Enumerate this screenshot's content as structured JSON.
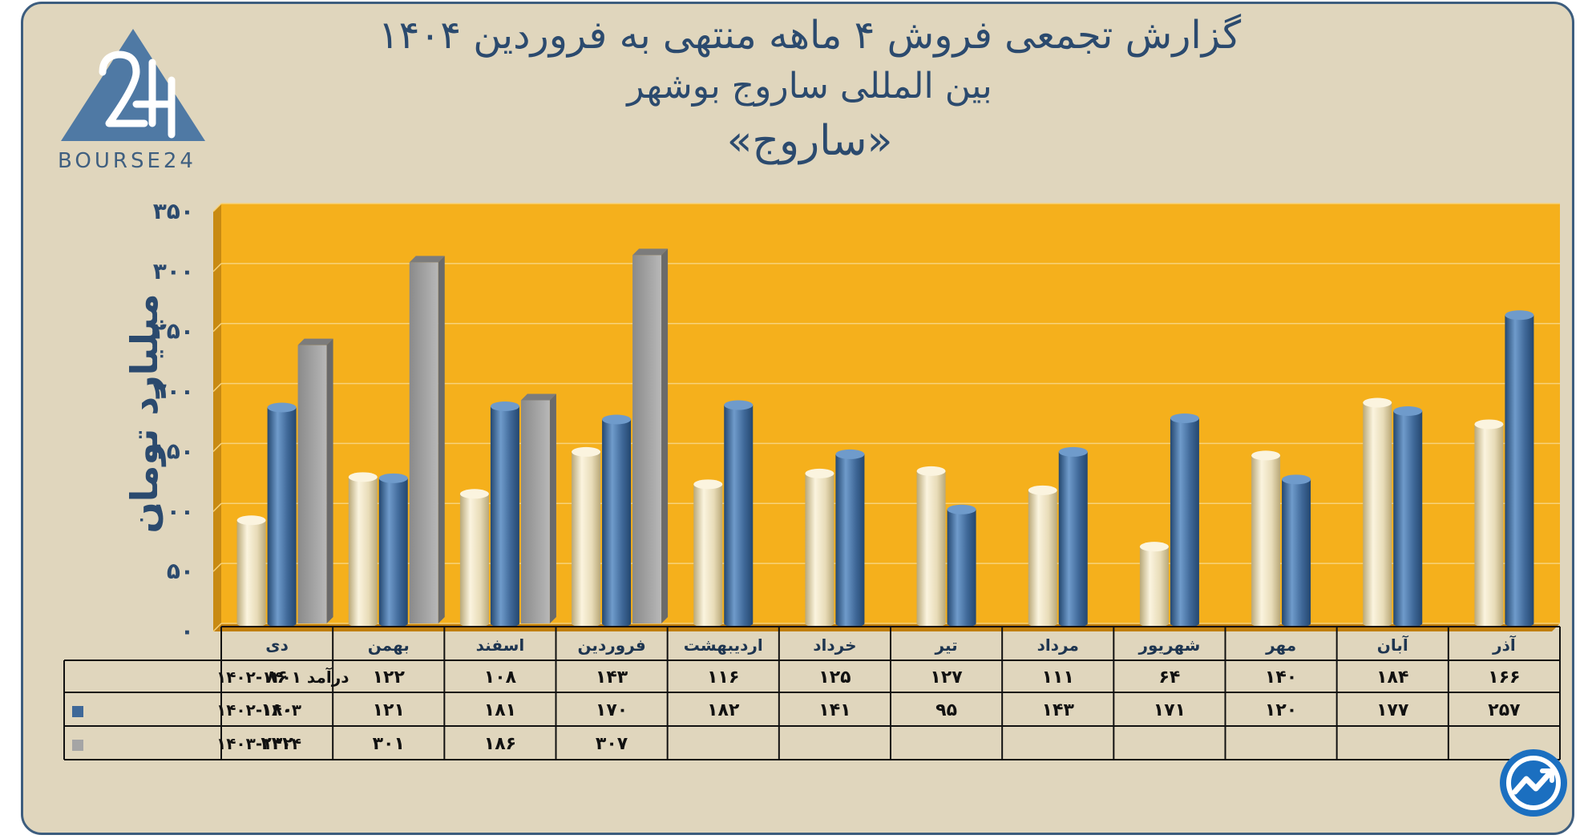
{
  "header": {
    "title_line1": "گزارش تجمعی فروش ۴ ماهه منتهی به فروردین ۱۴۰۴",
    "title_line2": "بین المللی ساروج بوشهر",
    "title_line3": "«ساروج»"
  },
  "logo": {
    "text": "BOURSE24",
    "icon": "bourse24-triangle-logo"
  },
  "corner_icon": "trend-arrow-icon",
  "colors": {
    "plot_bg": "#f5b01c",
    "frame_bg": "#e0d6bd",
    "series_1401_1402": "#e8dcb8",
    "series_1402_1403": "#3f6898",
    "series_1403_1404": "#a5a5a5",
    "title_color": "#2b4a6e"
  },
  "chart_data": {
    "type": "bar",
    "ylabel": "میلیارد تومان",
    "ylim": [
      0,
      350
    ],
    "yticks": [
      "۰",
      "۵۰",
      "۱۰۰",
      "۱۵۰",
      "۲۰۰",
      "۲۵۰",
      "۳۰۰",
      "۳۵۰"
    ],
    "ytick_values": [
      0,
      50,
      100,
      150,
      200,
      250,
      300,
      350
    ],
    "grid": true,
    "categories": [
      "دی",
      "بهمن",
      "اسفند",
      "فروردین",
      "اردیبهشت",
      "خرداد",
      "تیر",
      "مرداد",
      "شهریور",
      "مهر",
      "آبان",
      "آذر"
    ],
    "series": [
      {
        "name": "درآمد ۱۴۰۱-۱۴۰۲",
        "values": [
          86,
          122,
          108,
          143,
          116,
          125,
          127,
          111,
          64,
          140,
          184,
          166
        ],
        "labels": [
          "۸۶",
          "۱۲۲",
          "۱۰۸",
          "۱۴۳",
          "۱۱۶",
          "۱۲۵",
          "۱۲۷",
          "۱۱۱",
          "۶۴",
          "۱۴۰",
          "۱۸۴",
          "۱۶۶"
        ]
      },
      {
        "name": "۱۴۰۲-۱۴۰۳",
        "values": [
          180,
          121,
          181,
          170,
          182,
          141,
          95,
          143,
          171,
          120,
          177,
          257
        ],
        "labels": [
          "۱۸۰",
          "۱۲۱",
          "۱۸۱",
          "۱۷۰",
          "۱۸۲",
          "۱۴۱",
          "۹۵",
          "۱۴۳",
          "۱۷۱",
          "۱۲۰",
          "۱۷۷",
          "۲۵۷"
        ]
      },
      {
        "name": "۱۴۰۳-۱۴۰۴",
        "values": [
          232,
          301,
          186,
          307,
          null,
          null,
          null,
          null,
          null,
          null,
          null,
          null
        ],
        "labels": [
          "۲۳۲",
          "۳۰۱",
          "۱۸۶",
          "۳۰۷",
          "",
          "",
          "",
          "",
          "",
          "",
          "",
          ""
        ]
      }
    ]
  }
}
